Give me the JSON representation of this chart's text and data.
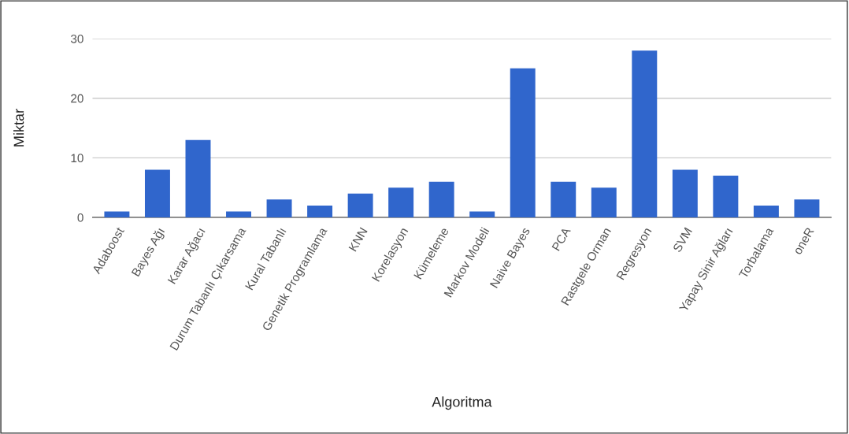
{
  "chart_data": {
    "type": "bar",
    "xlabel": "Algoritma",
    "ylabel": "Miktar",
    "categories": [
      "Adaboost",
      "Bayes Ağı",
      "Karar Ağacı",
      "Durum Tabanlı Çıkarsama",
      "Kural Tabanlı",
      "Genetik Programlama",
      "KNN",
      "Korelasyon",
      "Kümeleme",
      "Markov Modeli",
      "Naive Bayes",
      "PCA",
      "Rastgele Orman",
      "Regresyon",
      "SVM",
      "Yapay Sinir Ağları",
      "Torbalama",
      "oneR"
    ],
    "values": [
      1,
      8,
      13,
      1,
      3,
      2,
      4,
      5,
      6,
      1,
      25,
      6,
      5,
      28,
      8,
      7,
      2,
      3
    ],
    "color": "#3066cc",
    "ylim": [
      0,
      30
    ],
    "yticks": [
      0,
      10,
      20,
      30
    ],
    "grid": "y",
    "legend": false
  }
}
